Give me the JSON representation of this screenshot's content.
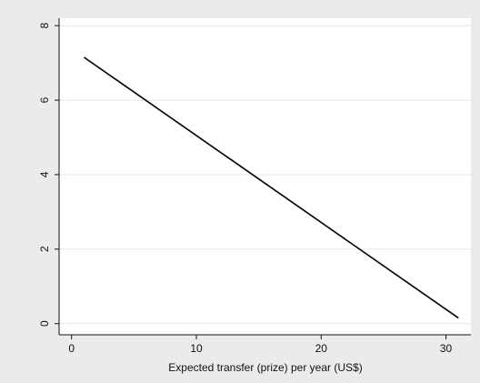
{
  "chart_data": {
    "type": "line",
    "title": "",
    "xlabel": "Expected transfer (prize) per year (US$)",
    "ylabel": "",
    "xlim": [
      -1,
      32
    ],
    "ylim": [
      -0.3,
      8.2
    ],
    "x_ticks": [
      0,
      10,
      20,
      30
    ],
    "y_ticks": [
      0,
      2,
      4,
      6,
      8
    ],
    "x_tick_labels": [
      "0",
      "10",
      "20",
      "30"
    ],
    "y_tick_labels": [
      "0",
      "2",
      "4",
      "6",
      "8"
    ],
    "grid": true,
    "legend": "none",
    "series": [
      {
        "x": [
          1,
          31
        ],
        "y": [
          7.15,
          0.15
        ]
      }
    ]
  },
  "colors": {
    "frame_background": "#ebebeb",
    "plot_background": "#ffffff",
    "gridline": "#e6e6e6",
    "axis": "#111111",
    "series_line": "#000000"
  }
}
